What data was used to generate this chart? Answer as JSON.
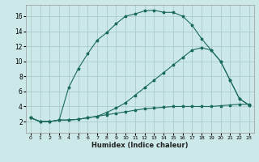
{
  "background_color": "#cce8e8",
  "line_color": "#1a6b5a",
  "grid_color": "#aacccc",
  "xlabel": "Humidex (Indice chaleur)",
  "xlim": [
    -0.5,
    23.5
  ],
  "ylim": [
    0.5,
    17.5
  ],
  "xticks": [
    0,
    1,
    2,
    3,
    4,
    5,
    6,
    7,
    8,
    9,
    10,
    11,
    12,
    13,
    14,
    15,
    16,
    17,
    18,
    19,
    20,
    21,
    22,
    23
  ],
  "yticks": [
    2,
    4,
    6,
    8,
    10,
    12,
    14,
    16
  ],
  "curve1_x": [
    0,
    1,
    2,
    3,
    4,
    5,
    6,
    7,
    8,
    9,
    10,
    11,
    12,
    13,
    14,
    15,
    16,
    17,
    18,
    19,
    20,
    21,
    22,
    23
  ],
  "curve1_y": [
    2.5,
    2.0,
    2.0,
    2.2,
    2.2,
    2.3,
    2.5,
    2.7,
    2.9,
    3.1,
    3.3,
    3.5,
    3.7,
    3.8,
    3.9,
    4.0,
    4.0,
    4.0,
    4.0,
    4.0,
    4.1,
    4.2,
    4.3,
    4.3
  ],
  "curve2_x": [
    0,
    1,
    2,
    3,
    4,
    5,
    6,
    7,
    8,
    9,
    10,
    11,
    12,
    13,
    14,
    15,
    16,
    17,
    18,
    19,
    20,
    21,
    22,
    23
  ],
  "curve2_y": [
    2.5,
    2.0,
    2.0,
    2.2,
    6.5,
    9.0,
    11.0,
    12.8,
    13.8,
    15.0,
    16.0,
    16.3,
    16.7,
    16.8,
    16.5,
    16.5,
    16.0,
    14.8,
    13.0,
    11.5,
    10.0,
    7.5,
    5.0,
    4.2
  ],
  "curve3_x": [
    0,
    1,
    2,
    3,
    4,
    5,
    6,
    7,
    8,
    9,
    10,
    11,
    12,
    13,
    14,
    15,
    16,
    17,
    18,
    19,
    20,
    21,
    22,
    23
  ],
  "curve3_y": [
    2.5,
    2.0,
    2.0,
    2.2,
    2.2,
    2.3,
    2.5,
    2.7,
    3.2,
    3.8,
    4.5,
    5.5,
    6.5,
    7.5,
    8.5,
    9.5,
    10.5,
    11.5,
    11.8,
    11.5,
    10.0,
    7.5,
    5.0,
    4.2
  ]
}
